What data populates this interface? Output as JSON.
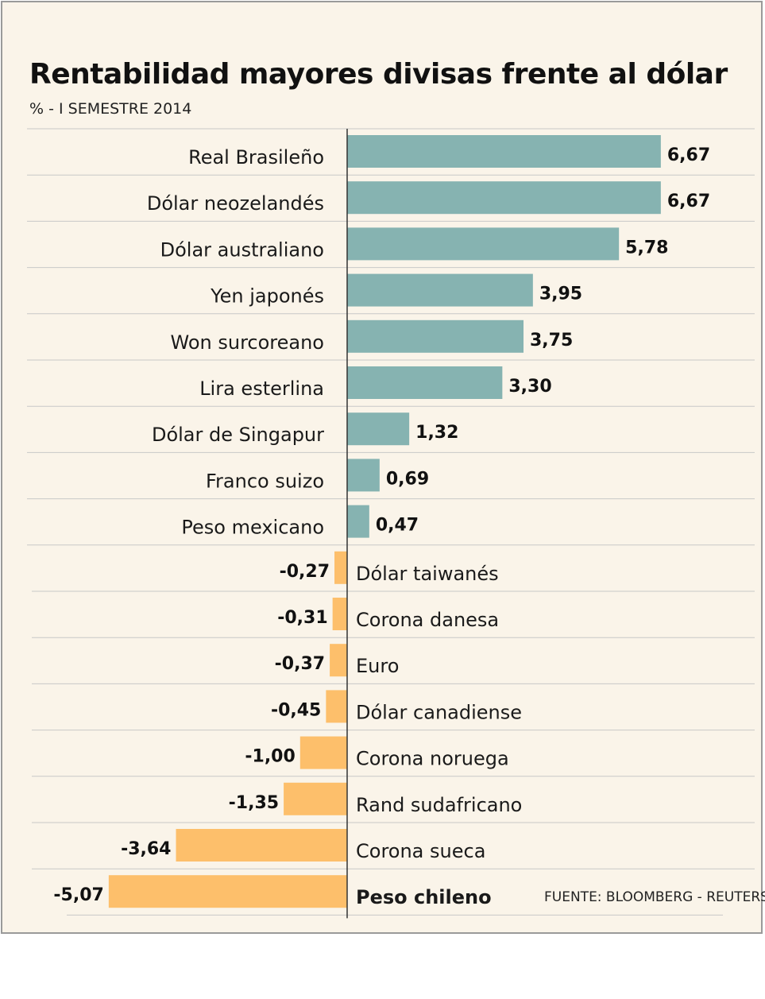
{
  "chart_data": {
    "type": "bar",
    "orientation": "horizontal",
    "title": "Rentabilidad mayores divisas frente al dólar",
    "subtitle": "% - I SEMESTRE 2014",
    "source": "FUENTE: BLOOMBERG - REUTERS",
    "categories": [
      "Real Brasileño",
      "Dólar neozelandés",
      "Dólar australiano",
      "Yen japonés",
      "Won surcoreano",
      "Lira esterlina",
      "Dólar de Singapur",
      "Franco suizo",
      "Peso mexicano",
      "Dólar taiwanés",
      "Corona danesa",
      "Euro",
      "Dólar canadiense",
      "Corona noruega",
      "Rand sudafricano",
      "Corona sueca",
      "Peso chileno"
    ],
    "values": [
      6.67,
      6.67,
      5.78,
      3.95,
      3.75,
      3.3,
      1.32,
      0.69,
      0.47,
      -0.27,
      -0.31,
      -0.37,
      -0.45,
      -1.0,
      -1.35,
      -3.64,
      -5.07
    ],
    "value_labels": [
      "6,67",
      "6,67",
      "5,78",
      "3,95",
      "3,75",
      "3,30",
      "1,32",
      "0,69",
      "0,47",
      "-0,27",
      "-0,31",
      "-0,37",
      "-0,45",
      "-1,00",
      "-1,35",
      "-3,64",
      "-5,07"
    ],
    "highlight": "Peso chileno",
    "colors": {
      "positive": "#86b3b1",
      "negative": "#fdbf6b",
      "axis": "#333333",
      "grid": "#c8c8c8"
    }
  }
}
